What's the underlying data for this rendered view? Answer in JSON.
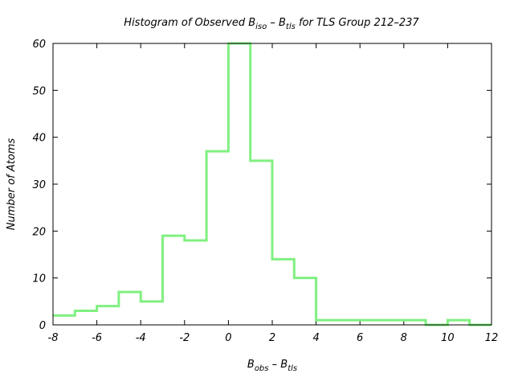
{
  "chart_data": {
    "type": "bar",
    "style": "step-histogram",
    "title": {
      "prefix": "Histogram of Observed B",
      "sub1": "iso",
      "mid": " – B",
      "sub2": "tls",
      "suffix": " for TLS Group 212–237"
    },
    "xlabel": {
      "main1": "B",
      "sub1": "obs",
      "mid": " – B",
      "sub2": "tls"
    },
    "ylabel": "Number of Atoms",
    "xlim": [
      -8,
      12
    ],
    "ylim": [
      0,
      60
    ],
    "xticks": [
      -8,
      -6,
      -4,
      -2,
      0,
      2,
      4,
      6,
      8,
      10,
      12
    ],
    "xtick_labels": [
      "-8",
      "-6",
      "-4",
      "-2",
      "0",
      "2",
      "4",
      "6",
      "8",
      "10",
      "12"
    ],
    "yticks": [
      0,
      10,
      20,
      30,
      40,
      50,
      60
    ],
    "ytick_labels": [
      "0",
      "10",
      "20",
      "30",
      "40",
      "50",
      "60"
    ],
    "bin_width": 1,
    "bin_starts": [
      -8,
      -7,
      -6,
      -5,
      -4,
      -3,
      -2,
      -1,
      0,
      1,
      2,
      3,
      4,
      5,
      6,
      7,
      8,
      9,
      10,
      11
    ],
    "values": [
      2,
      3,
      4,
      7,
      5,
      19,
      18,
      37,
      60,
      35,
      14,
      10,
      1,
      1,
      1,
      1,
      1,
      0,
      1,
      0
    ],
    "grid": false,
    "line_color": "#80f080",
    "frame_color": "#000000"
  }
}
